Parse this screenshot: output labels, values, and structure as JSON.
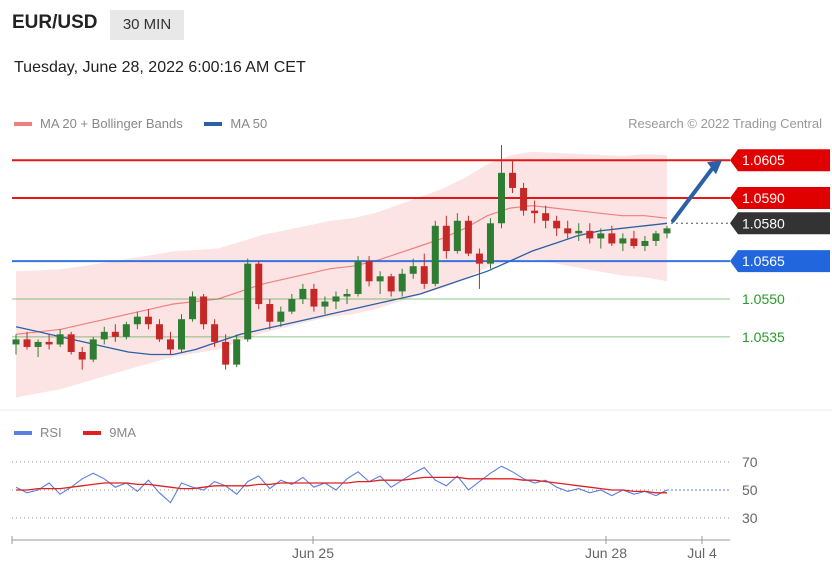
{
  "header": {
    "symbol": "EUR/USD",
    "timeframe": "30 MIN",
    "timestamp": "Tuesday, June 28, 2022 6:00:16 AM CET"
  },
  "legend": {
    "ma20": {
      "label": "MA 20 + Bollinger Bands",
      "color": "#f08080"
    },
    "ma50": {
      "label": "MA 50",
      "color": "#2b5fa6"
    }
  },
  "credit": "Research © 2022 Trading Central",
  "rsi_legend": {
    "rsi": {
      "label": "RSI",
      "color": "#5b7fe0"
    },
    "ma9": {
      "label": "9MA",
      "color": "#e02020"
    }
  },
  "colors": {
    "up": "#2e7d32",
    "down": "#c62828",
    "resistance": "#e00000",
    "pivot": "#2266dd",
    "support": "#2a9a2a",
    "current": "#333333",
    "band": "#fde4e4",
    "arrow": "#2b5fa6"
  },
  "chart_data": [
    {
      "type": "candlestick",
      "title": "EUR/USD 30 MIN",
      "ylim": [
        1.0508,
        1.0613
      ],
      "x_ticks": [
        "Jun 25",
        "Jun 28",
        "Jul 4"
      ],
      "levels": [
        {
          "value": "1.0605",
          "kind": "resistance"
        },
        {
          "value": "1.0590",
          "kind": "resistance"
        },
        {
          "value": "1.0580",
          "kind": "current"
        },
        {
          "value": "1.0565",
          "kind": "pivot"
        },
        {
          "value": "1.0550",
          "kind": "support"
        },
        {
          "value": "1.0535",
          "kind": "support"
        }
      ],
      "target_arrow": {
        "from": 1.0581,
        "to": 1.0605
      },
      "series": [
        {
          "name": "MA 20 + Bollinger Bands",
          "values": [
            1.0536,
            1.0537,
            1.0538,
            1.054,
            1.0542,
            1.0544,
            1.0546,
            1.0548,
            1.0549,
            1.055,
            1.0553,
            1.0556,
            1.0558,
            1.056,
            1.0562,
            1.0563,
            1.0565,
            1.0568,
            1.0571,
            1.0574,
            1.0578,
            1.0583,
            1.0586,
            1.0587,
            1.0586,
            1.0585,
            1.0584,
            1.0583,
            1.0583,
            1.0582
          ]
        },
        {
          "name": "MA 50",
          "values": [
            1.0539,
            1.0537,
            1.0535,
            1.0533,
            1.0531,
            1.0529,
            1.0528,
            1.0528,
            1.053,
            1.0533,
            1.0536,
            1.0538,
            1.054,
            1.0542,
            1.0544,
            1.0546,
            1.0548,
            1.055,
            1.0552,
            1.0555,
            1.0558,
            1.0561,
            1.0565,
            1.0569,
            1.0572,
            1.0575,
            1.0577,
            1.0578,
            1.0579,
            1.058
          ]
        }
      ],
      "ohlc": [
        [
          1.0532,
          1.0536,
          1.0528,
          1.0534
        ],
        [
          1.0534,
          1.0537,
          1.053,
          1.0531
        ],
        [
          1.0531,
          1.0534,
          1.0527,
          1.0533
        ],
        [
          1.0533,
          1.0536,
          1.053,
          1.0532
        ],
        [
          1.0532,
          1.0538,
          1.0531,
          1.0536
        ],
        [
          1.0536,
          1.0537,
          1.0528,
          1.0529
        ],
        [
          1.0529,
          1.0531,
          1.0522,
          1.0526
        ],
        [
          1.0526,
          1.0535,
          1.0525,
          1.0534
        ],
        [
          1.0534,
          1.0539,
          1.0532,
          1.0537
        ],
        [
          1.0537,
          1.054,
          1.0533,
          1.0535
        ],
        [
          1.0535,
          1.0541,
          1.0534,
          1.054
        ],
        [
          1.054,
          1.0545,
          1.0538,
          1.0543
        ],
        [
          1.0543,
          1.0546,
          1.0538,
          1.054
        ],
        [
          1.054,
          1.0542,
          1.0533,
          1.0534
        ],
        [
          1.0534,
          1.0537,
          1.0528,
          1.053
        ],
        [
          1.053,
          1.0544,
          1.0529,
          1.0542
        ],
        [
          1.0542,
          1.0553,
          1.0541,
          1.0551
        ],
        [
          1.0551,
          1.0552,
          1.0538,
          1.054
        ],
        [
          1.054,
          1.0542,
          1.0531,
          1.0533
        ],
        [
          1.0533,
          1.0536,
          1.0522,
          1.0524
        ],
        [
          1.0524,
          1.0536,
          1.0523,
          1.0534
        ],
        [
          1.0534,
          1.0566,
          1.0533,
          1.0564
        ],
        [
          1.0564,
          1.0565,
          1.0546,
          1.0548
        ],
        [
          1.0548,
          1.055,
          1.0538,
          1.0541
        ],
        [
          1.0541,
          1.0547,
          1.0539,
          1.0545
        ],
        [
          1.0545,
          1.0552,
          1.0544,
          1.055
        ],
        [
          1.055,
          1.0556,
          1.0548,
          1.0554
        ],
        [
          1.0554,
          1.0556,
          1.0545,
          1.0547
        ],
        [
          1.0547,
          1.0551,
          1.0544,
          1.0549
        ],
        [
          1.0549,
          1.0553,
          1.0546,
          1.0551
        ],
        [
          1.0551,
          1.0554,
          1.0548,
          1.0552
        ],
        [
          1.0552,
          1.0567,
          1.0551,
          1.0565
        ],
        [
          1.0565,
          1.0567,
          1.0555,
          1.0557
        ],
        [
          1.0557,
          1.0561,
          1.0552,
          1.0559
        ],
        [
          1.0559,
          1.056,
          1.0551,
          1.0553
        ],
        [
          1.0553,
          1.0562,
          1.0551,
          1.056
        ],
        [
          1.056,
          1.0566,
          1.0558,
          1.0563
        ],
        [
          1.0563,
          1.0568,
          1.0554,
          1.0556
        ],
        [
          1.0556,
          1.0581,
          1.0555,
          1.0579
        ],
        [
          1.0579,
          1.0583,
          1.0566,
          1.0569
        ],
        [
          1.0569,
          1.0584,
          1.0568,
          1.0581
        ],
        [
          1.0581,
          1.0583,
          1.0567,
          1.0568
        ],
        [
          1.0568,
          1.057,
          1.0554,
          1.0564
        ],
        [
          1.0564,
          1.0582,
          1.0562,
          1.058
        ],
        [
          1.058,
          1.0611,
          1.0578,
          1.06
        ],
        [
          1.06,
          1.0605,
          1.0592,
          1.0594
        ],
        [
          1.0594,
          1.0596,
          1.0583,
          1.0585
        ],
        [
          1.0585,
          1.0589,
          1.058,
          1.0584
        ],
        [
          1.0584,
          1.0587,
          1.0578,
          1.0581
        ],
        [
          1.0581,
          1.0583,
          1.0575,
          1.0578
        ],
        [
          1.0578,
          1.0581,
          1.0574,
          1.0576
        ],
        [
          1.0576,
          1.058,
          1.0573,
          1.0577
        ],
        [
          1.0577,
          1.058,
          1.0572,
          1.0574
        ],
        [
          1.0574,
          1.0578,
          1.057,
          1.0576
        ],
        [
          1.0576,
          1.0579,
          1.0571,
          1.0572
        ],
        [
          1.0572,
          1.0576,
          1.0569,
          1.0574
        ],
        [
          1.0574,
          1.0577,
          1.057,
          1.0571
        ],
        [
          1.0571,
          1.0575,
          1.0569,
          1.0573
        ],
        [
          1.0573,
          1.0577,
          1.0571,
          1.0576
        ],
        [
          1.0576,
          1.0579,
          1.0574,
          1.0578
        ]
      ]
    },
    {
      "type": "line",
      "title": "RSI",
      "ylim": [
        25,
        75
      ],
      "y_ticks": [
        "70",
        "50",
        "30"
      ],
      "series": [
        {
          "name": "RSI",
          "values": [
            52,
            48,
            50,
            55,
            47,
            52,
            58,
            62,
            58,
            52,
            55,
            49,
            57,
            48,
            41,
            55,
            52,
            50,
            56,
            53,
            47,
            56,
            60,
            51,
            57,
            54,
            59,
            52,
            55,
            50,
            58,
            63,
            56,
            60,
            52,
            57,
            62,
            66,
            57,
            53,
            60,
            50,
            56,
            62,
            67,
            63,
            58,
            55,
            57,
            52,
            49,
            51,
            48,
            50,
            46,
            50,
            47,
            49,
            46,
            50
          ]
        },
        {
          "name": "9MA",
          "values": [
            50,
            50,
            51,
            51,
            51,
            52,
            53,
            54,
            55,
            55,
            55,
            54,
            54,
            53,
            52,
            51,
            51,
            52,
            53,
            53,
            53,
            53,
            54,
            54,
            55,
            55,
            55,
            55,
            55,
            55,
            55,
            56,
            56,
            57,
            57,
            57,
            58,
            59,
            59,
            59,
            59,
            58,
            58,
            58,
            58,
            58,
            57,
            57,
            56,
            55,
            54,
            53,
            52,
            51,
            50,
            50,
            49,
            49,
            48,
            48
          ]
        }
      ]
    }
  ]
}
